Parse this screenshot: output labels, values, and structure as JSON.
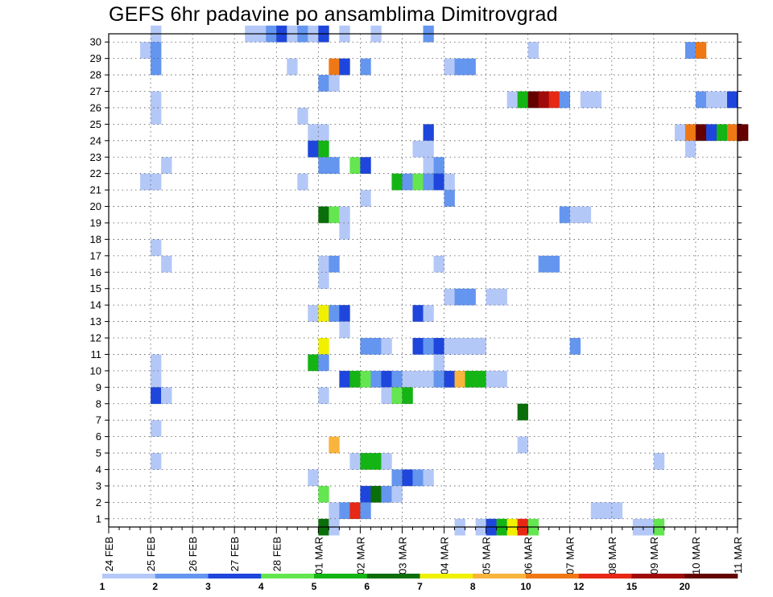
{
  "chart_data": {
    "type": "heatmap",
    "title": "GEFS 6hr padavine po ansamblima Dimitrovgrad",
    "xlabel": "",
    "ylabel": "",
    "x_tick_labels": [
      "24 FEB",
      "25 FEB",
      "26 FEB",
      "27 FEB",
      "28 FEB",
      "01 MAR",
      "02 MAR",
      "03 MAR",
      "04 MAR",
      "05 MAR",
      "06 MAR",
      "07 MAR",
      "08 MAR",
      "09 MAR",
      "10 MAR",
      "11 MAR"
    ],
    "y_tick_labels": [
      "1",
      "2",
      "3",
      "4",
      "5",
      "6",
      "7",
      "8",
      "9",
      "10",
      "11",
      "12",
      "13",
      "14",
      "15",
      "16",
      "17",
      "18",
      "19",
      "20",
      "21",
      "22",
      "23",
      "24",
      "25",
      "26",
      "27",
      "28",
      "29",
      "30"
    ],
    "ylim": [
      0,
      30
    ],
    "x_steps": 60,
    "grid": true,
    "colorbar": {
      "levels": [
        "1",
        "2",
        "3",
        "4",
        "5",
        "6",
        "7",
        "8",
        "10",
        "12",
        "15",
        "20"
      ],
      "colors": [
        "#b4c8f8",
        "#6496f0",
        "#1e46dc",
        "#64e650",
        "#14b414",
        "#0a6e0a",
        "#f0f000",
        "#f8b43c",
        "#f07814",
        "#e62814",
        "#a00a0a",
        "#640000"
      ]
    },
    "cells": [
      [
        30,
        4,
        1
      ],
      [
        30,
        13,
        1
      ],
      [
        30,
        14,
        1
      ],
      [
        30,
        15,
        2
      ],
      [
        30,
        16,
        3
      ],
      [
        30,
        17,
        1
      ],
      [
        30,
        18,
        2
      ],
      [
        30,
        19,
        1
      ],
      [
        30,
        20,
        3
      ],
      [
        30,
        22,
        1
      ],
      [
        30,
        25,
        1
      ],
      [
        30,
        30,
        2
      ],
      [
        29,
        3,
        1
      ],
      [
        29,
        4,
        2
      ],
      [
        29,
        40,
        1
      ],
      [
        29,
        55,
        2
      ],
      [
        29,
        56,
        9
      ],
      [
        28,
        4,
        2
      ],
      [
        28,
        17,
        1
      ],
      [
        28,
        21,
        9
      ],
      [
        28,
        22,
        3
      ],
      [
        28,
        24,
        2
      ],
      [
        28,
        32,
        1
      ],
      [
        28,
        33,
        2
      ],
      [
        28,
        34,
        2
      ],
      [
        27,
        20,
        2
      ],
      [
        27,
        21,
        1
      ],
      [
        26,
        4,
        1
      ],
      [
        26,
        38,
        1
      ],
      [
        26,
        39,
        5
      ],
      [
        26,
        40,
        12
      ],
      [
        26,
        41,
        11
      ],
      [
        26,
        42,
        10
      ],
      [
        26,
        43,
        2
      ],
      [
        26,
        45,
        1
      ],
      [
        26,
        46,
        1
      ],
      [
        26,
        56,
        2
      ],
      [
        26,
        57,
        1
      ],
      [
        26,
        58,
        1
      ],
      [
        26,
        59,
        3
      ],
      [
        25,
        4,
        1
      ],
      [
        25,
        18,
        1
      ],
      [
        24,
        19,
        1
      ],
      [
        24,
        20,
        1
      ],
      [
        24,
        30,
        3
      ],
      [
        24,
        54,
        1
      ],
      [
        24,
        55,
        9
      ],
      [
        24,
        56,
        12
      ],
      [
        24,
        57,
        3
      ],
      [
        24,
        58,
        5
      ],
      [
        24,
        59,
        9
      ],
      [
        24,
        60,
        12
      ],
      [
        23,
        19,
        3
      ],
      [
        23,
        20,
        5
      ],
      [
        23,
        29,
        1
      ],
      [
        23,
        30,
        1
      ],
      [
        23,
        55,
        1
      ],
      [
        22,
        5,
        1
      ],
      [
        22,
        20,
        2
      ],
      [
        22,
        21,
        2
      ],
      [
        22,
        23,
        4
      ],
      [
        22,
        24,
        3
      ],
      [
        22,
        30,
        1
      ],
      [
        22,
        31,
        2
      ],
      [
        21,
        3,
        1
      ],
      [
        21,
        4,
        1
      ],
      [
        21,
        18,
        1
      ],
      [
        21,
        27,
        5
      ],
      [
        21,
        28,
        2
      ],
      [
        21,
        29,
        4
      ],
      [
        21,
        30,
        2
      ],
      [
        21,
        31,
        3
      ],
      [
        21,
        32,
        1
      ],
      [
        20,
        24,
        1
      ],
      [
        20,
        32,
        2
      ],
      [
        19,
        20,
        6
      ],
      [
        19,
        21,
        4
      ],
      [
        19,
        22,
        1
      ],
      [
        19,
        43,
        2
      ],
      [
        19,
        44,
        1
      ],
      [
        19,
        45,
        1
      ],
      [
        18,
        22,
        1
      ],
      [
        17,
        4,
        1
      ],
      [
        16,
        5,
        1
      ],
      [
        16,
        20,
        1
      ],
      [
        16,
        21,
        2
      ],
      [
        16,
        31,
        1
      ],
      [
        16,
        41,
        2
      ],
      [
        16,
        42,
        2
      ],
      [
        15,
        20,
        1
      ],
      [
        14,
        32,
        1
      ],
      [
        14,
        33,
        2
      ],
      [
        14,
        34,
        2
      ],
      [
        14,
        36,
        1
      ],
      [
        14,
        37,
        1
      ],
      [
        13,
        19,
        1
      ],
      [
        13,
        20,
        7
      ],
      [
        13,
        21,
        2
      ],
      [
        13,
        22,
        3
      ],
      [
        13,
        29,
        3
      ],
      [
        13,
        30,
        1
      ],
      [
        12,
        22,
        1
      ],
      [
        11,
        20,
        7
      ],
      [
        11,
        24,
        2
      ],
      [
        11,
        25,
        2
      ],
      [
        11,
        26,
        1
      ],
      [
        11,
        29,
        3
      ],
      [
        11,
        30,
        2
      ],
      [
        11,
        31,
        3
      ],
      [
        11,
        32,
        1
      ],
      [
        11,
        33,
        1
      ],
      [
        11,
        34,
        1
      ],
      [
        11,
        35,
        1
      ],
      [
        11,
        44,
        2
      ],
      [
        10,
        4,
        1
      ],
      [
        10,
        19,
        5
      ],
      [
        10,
        20,
        2
      ],
      [
        10,
        31,
        1
      ],
      [
        9,
        4,
        1
      ],
      [
        9,
        22,
        3
      ],
      [
        9,
        23,
        5
      ],
      [
        9,
        24,
        4
      ],
      [
        9,
        25,
        2
      ],
      [
        9,
        26,
        3
      ],
      [
        9,
        27,
        2
      ],
      [
        9,
        28,
        1
      ],
      [
        9,
        29,
        1
      ],
      [
        9,
        30,
        1
      ],
      [
        9,
        31,
        2
      ],
      [
        9,
        32,
        3
      ],
      [
        9,
        33,
        8
      ],
      [
        9,
        34,
        5
      ],
      [
        9,
        35,
        5
      ],
      [
        9,
        36,
        1
      ],
      [
        9,
        37,
        1
      ],
      [
        8,
        4,
        3
      ],
      [
        8,
        5,
        1
      ],
      [
        8,
        20,
        1
      ],
      [
        8,
        26,
        1
      ],
      [
        8,
        27,
        4
      ],
      [
        8,
        28,
        5
      ],
      [
        7,
        39,
        6
      ],
      [
        6,
        4,
        1
      ],
      [
        5,
        21,
        8
      ],
      [
        5,
        39,
        1
      ],
      [
        4,
        4,
        1
      ],
      [
        4,
        23,
        1
      ],
      [
        4,
        24,
        5
      ],
      [
        4,
        25,
        5
      ],
      [
        4,
        26,
        1
      ],
      [
        4,
        52,
        1
      ],
      [
        3,
        19,
        1
      ],
      [
        3,
        27,
        2
      ],
      [
        3,
        28,
        3
      ],
      [
        3,
        29,
        2
      ],
      [
        3,
        30,
        1
      ],
      [
        2,
        20,
        4
      ],
      [
        2,
        24,
        3
      ],
      [
        2,
        25,
        6
      ],
      [
        2,
        26,
        2
      ],
      [
        2,
        27,
        1
      ],
      [
        1,
        21,
        1
      ],
      [
        1,
        22,
        2
      ],
      [
        1,
        23,
        10
      ],
      [
        1,
        24,
        2
      ],
      [
        1,
        46,
        1
      ],
      [
        1,
        47,
        1
      ],
      [
        1,
        48,
        1
      ],
      [
        0,
        20,
        6
      ],
      [
        0,
        21,
        1
      ],
      [
        0,
        33,
        1
      ],
      [
        0,
        35,
        1
      ],
      [
        0,
        36,
        3
      ],
      [
        0,
        37,
        5
      ],
      [
        0,
        38,
        7
      ],
      [
        0,
        39,
        10
      ],
      [
        0,
        40,
        4
      ],
      [
        0,
        50,
        1
      ],
      [
        0,
        51,
        1
      ],
      [
        0,
        52,
        4
      ]
    ]
  }
}
